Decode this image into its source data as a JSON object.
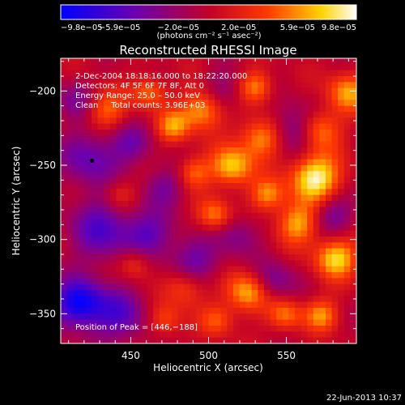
{
  "chart_data": {
    "type": "heatmap",
    "title": "Reconstructed RHESSI Image",
    "xlabel": "Heliocentric X (arcsec)",
    "ylabel": "Heliocentric Y (arcsec)",
    "xlim": [
      405,
      595
    ],
    "ylim": [
      -370,
      -178
    ],
    "x_ticks": [
      450,
      500,
      550
    ],
    "y_ticks": [
      -200,
      -250,
      -300,
      -350
    ],
    "x_tick_labels": [
      "450",
      "500",
      "550"
    ],
    "y_tick_labels": [
      "−200",
      "−250",
      "−300",
      "−350"
    ],
    "colorbar": {
      "min": -9.8e-05,
      "max": 9.8e-05,
      "tick_values": [
        -9.8e-05,
        -5.9e-05,
        -2e-05,
        2e-05,
        5.9e-05,
        9.8e-05
      ],
      "tick_labels": [
        "−9.8e−05",
        "−5.9e−05",
        "−2.0e−05",
        "2.0e−05",
        "5.9e−05",
        "9.8e−05"
      ],
      "unit_label": "(photons cm⁻² s⁻¹ asec⁻²)"
    },
    "annotations": {
      "time": "2‑Dec‑2004 18:18:16.000 to 18:22:20.000",
      "detectors": "Detectors: 4F 5F 6F 7F 8F, Att 0",
      "energy": "Energy Range: 25.0 – 50.0 keV",
      "clean": "Clean     Total counts: 3.96E+03",
      "peak": "Position of Peak = [446,−188]"
    },
    "marker": {
      "x": 425,
      "y": -247
    },
    "grid": false,
    "palette": [
      "#0000ff",
      "#6a00b0",
      "#c0002a",
      "#ff3a00",
      "#ffd200",
      "#ffffff"
    ]
  },
  "footer": {
    "date": "22‑Jun‑2013 10:37"
  }
}
